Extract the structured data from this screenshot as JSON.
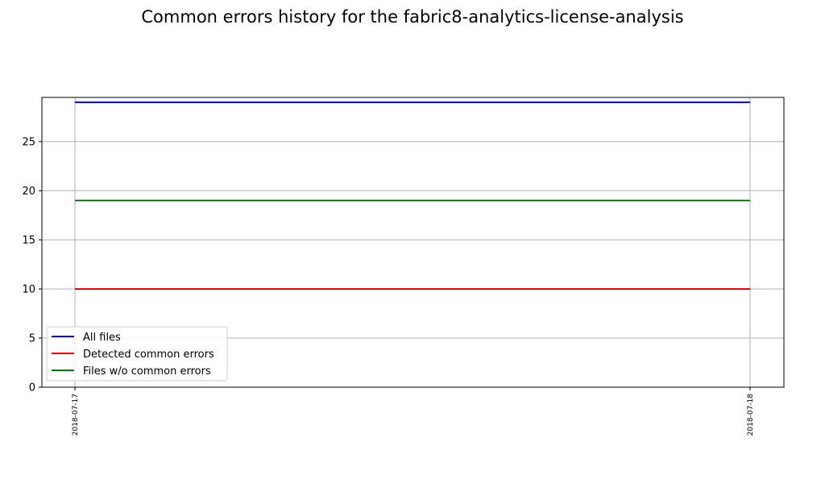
{
  "chart_data": {
    "type": "line",
    "title": "Common errors history for the fabric8-analytics-license-analysis",
    "xlabel": "",
    "ylabel": "",
    "x": [
      "2018-07-17",
      "2018-07-18"
    ],
    "ylim": [
      0,
      29.5
    ],
    "yticks": [
      0,
      5,
      10,
      15,
      20,
      25
    ],
    "grid": true,
    "legend_position": "lower-left",
    "series": [
      {
        "name": "All files",
        "color": "#0000ff",
        "values": [
          29,
          29
        ]
      },
      {
        "name": "Detected common errors",
        "color": "#ff0000",
        "values": [
          10,
          10
        ]
      },
      {
        "name": "Files w/o common errors",
        "color": "#008000",
        "values": [
          19,
          19
        ]
      }
    ]
  }
}
